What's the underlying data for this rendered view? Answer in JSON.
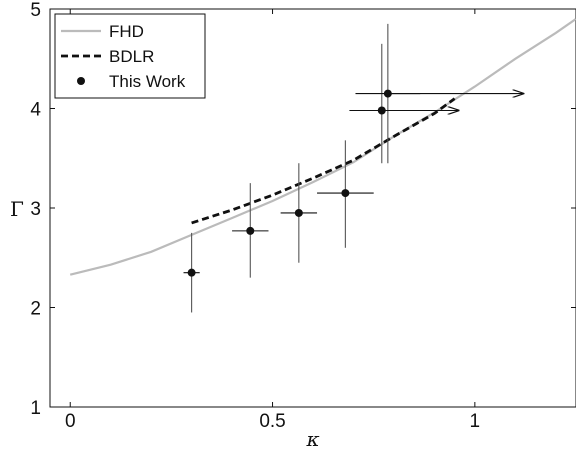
{
  "chart_data": {
    "type": "scatter",
    "xlabel": "κ",
    "ylabel": "Γ",
    "xlim": [
      -0.05,
      1.25
    ],
    "ylim": [
      1,
      5
    ],
    "xticks": [
      0,
      0.5,
      1
    ],
    "xtick_labels": [
      "0",
      "0.5",
      "1"
    ],
    "yticks": [
      1,
      2,
      3,
      4,
      5
    ],
    "ytick_labels": [
      "1",
      "2",
      "3",
      "4",
      "5"
    ],
    "grid": false,
    "legend_position": "top-left",
    "series": [
      {
        "name": "FHD",
        "kind": "line",
        "style": "solid",
        "color": "#bbbbbb",
        "x": [
          0,
          0.1,
          0.2,
          0.3,
          0.4,
          0.5,
          0.6,
          0.7,
          0.8,
          0.9,
          1.0,
          1.1,
          1.2,
          1.25
        ],
        "y": [
          2.33,
          2.43,
          2.56,
          2.73,
          2.9,
          3.07,
          3.26,
          3.46,
          3.72,
          3.96,
          4.22,
          4.5,
          4.76,
          4.9
        ]
      },
      {
        "name": "BDLR",
        "kind": "line",
        "style": "dashed",
        "color": "#111111",
        "x": [
          0.3,
          0.4,
          0.5,
          0.6,
          0.7,
          0.8,
          0.9,
          0.95
        ],
        "y": [
          2.85,
          2.98,
          3.13,
          3.3,
          3.48,
          3.72,
          3.95,
          4.1
        ]
      },
      {
        "name": "This Work",
        "kind": "errorbar",
        "color": "#111111",
        "points": [
          {
            "x": 0.3,
            "y": 2.35,
            "xerr": 0.02,
            "ylow": 1.95,
            "yhigh": 2.75
          },
          {
            "x": 0.445,
            "y": 2.77,
            "xerr": 0.045,
            "ylow": 2.3,
            "yhigh": 3.25
          },
          {
            "x": 0.565,
            "y": 2.95,
            "xerr": 0.045,
            "ylow": 2.45,
            "yhigh": 3.45
          },
          {
            "x": 0.68,
            "y": 3.15,
            "xerr": 0.07,
            "ylow": 2.6,
            "yhigh": 3.68
          },
          {
            "x": 0.77,
            "y": 3.98,
            "xerr": 0.08,
            "ylow": 3.45,
            "yhigh": 4.65,
            "arrow_to_x": 0.96
          },
          {
            "x": 0.785,
            "y": 4.15,
            "xerr": 0.08,
            "ylow": 3.45,
            "yhigh": 4.85,
            "arrow_to_x": 1.12
          }
        ]
      }
    ]
  }
}
